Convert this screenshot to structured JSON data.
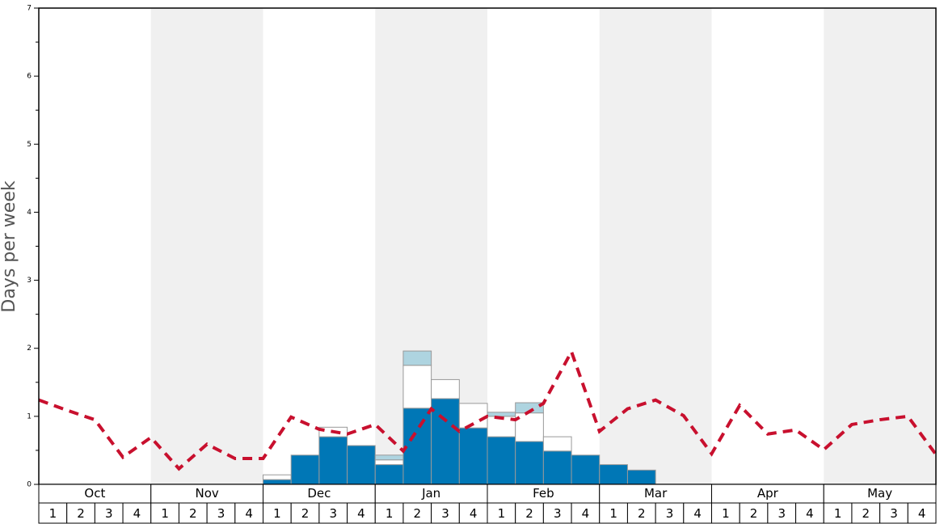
{
  "chart_data": {
    "type": "bar",
    "y_label": "Days per week",
    "months": [
      "Oct",
      "Nov",
      "Dec",
      "Jan",
      "Feb",
      "Mar",
      "Apr",
      "May"
    ],
    "categories": [
      "1",
      "2",
      "3",
      "4",
      "1",
      "2",
      "3",
      "4",
      "1",
      "2",
      "3",
      "4",
      "1",
      "2",
      "3",
      "4",
      "1",
      "2",
      "3",
      "4",
      "1",
      "2",
      "3",
      "4",
      "1",
      "2",
      "3",
      "4",
      "1",
      "2",
      "3",
      "4"
    ],
    "series": [
      {
        "color": "#0077b6",
        "values": [
          0,
          0,
          0,
          0,
          0,
          0,
          0,
          0,
          0.07,
          0.43,
          0.7,
          0.57,
          0.29,
          1.12,
          1.26,
          0.83,
          0.7,
          0.63,
          0.49,
          0.43,
          0.29,
          0.21,
          0,
          0,
          0,
          0,
          0,
          0,
          0,
          0,
          0,
          0
        ]
      },
      {
        "color": "#ffffff",
        "values": [
          0,
          0,
          0,
          0,
          0,
          0,
          0,
          0,
          0.07,
          0,
          0.14,
          0,
          0.07,
          0.63,
          0.28,
          0.36,
          0.3,
          0.42,
          0.21,
          0,
          0,
          0,
          0,
          0,
          0,
          0,
          0,
          0,
          0,
          0,
          0,
          0
        ]
      },
      {
        "color": "#aed4e0",
        "values": [
          0,
          0,
          0,
          0,
          0,
          0,
          0,
          0,
          0,
          0,
          0,
          0,
          0.07,
          0.21,
          0,
          0,
          0.06,
          0.15,
          0,
          0,
          0,
          0,
          0,
          0,
          0,
          0,
          0,
          0,
          0,
          0,
          0,
          0
        ]
      }
    ],
    "line": {
      "color": "#c8102e",
      "x": [
        0,
        1,
        2,
        3,
        4,
        5,
        6,
        7,
        8,
        9,
        10,
        11,
        12,
        13,
        14,
        15,
        16,
        17,
        18,
        19,
        20,
        21,
        22,
        23,
        24,
        25,
        26,
        27,
        28,
        29,
        30,
        31,
        32
      ],
      "values": [
        1.24,
        1.09,
        0.95,
        0.4,
        0.69,
        0.23,
        0.59,
        0.38,
        0.38,
        0.99,
        0.81,
        0.74,
        0.88,
        0.49,
        1.11,
        0.78,
        1.0,
        0.95,
        1.19,
        1.95,
        0.78,
        1.11,
        1.24,
        1.01,
        0.45,
        1.16,
        0.74,
        0.8,
        0.51,
        0.88,
        0.95,
        1.0,
        0.44
      ]
    },
    "xlim": [
      0,
      32
    ],
    "ylim": [
      0,
      7
    ],
    "yticks": [
      0,
      1,
      2,
      3,
      4,
      5,
      6,
      7
    ],
    "yminor_ticks": [
      0.5,
      1.5,
      2.5,
      3.5,
      4.5,
      5.5,
      6.5
    ]
  }
}
